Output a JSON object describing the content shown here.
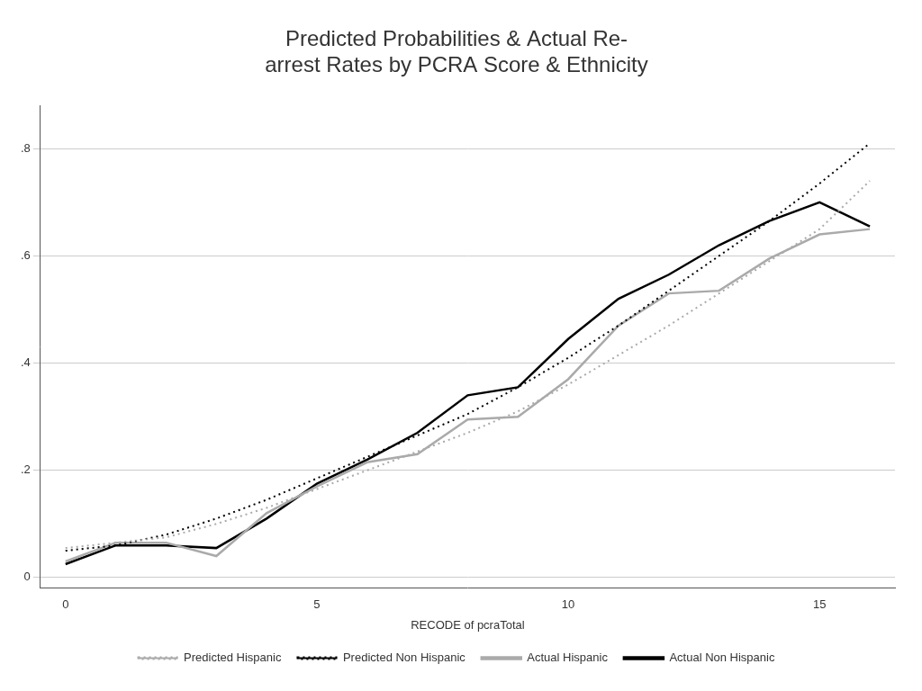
{
  "chart_data": {
    "type": "line",
    "title": "Predicted Probabilities & Actual Re-\narrest Rates by PCRA Score & Ethnicity",
    "x_label": "RECODE of pcraTotal",
    "x": [
      0,
      1,
      2,
      3,
      4,
      5,
      6,
      7,
      8,
      9,
      10,
      11,
      12,
      13,
      14,
      15,
      16
    ],
    "series": [
      {
        "name": "Predicted Hispanic",
        "color": "#aaaaaa",
        "line_style": "dotted",
        "values": [
          0.055,
          0.065,
          0.075,
          0.1,
          0.13,
          0.165,
          0.2,
          0.235,
          0.27,
          0.31,
          0.36,
          0.415,
          0.47,
          0.53,
          0.59,
          0.65,
          0.74
        ]
      },
      {
        "name": "Predicted Non Hispanic",
        "color": "#000000",
        "line_style": "dotted",
        "values": [
          0.05,
          0.06,
          0.08,
          0.11,
          0.145,
          0.185,
          0.225,
          0.265,
          0.305,
          0.355,
          0.41,
          0.47,
          0.535,
          0.6,
          0.665,
          0.735,
          0.81
        ]
      },
      {
        "name": "Actual Hispanic",
        "color": "#aaaaaa",
        "line_style": "solid",
        "values": [
          0.03,
          0.065,
          0.065,
          0.04,
          0.12,
          0.17,
          0.215,
          0.23,
          0.295,
          0.3,
          0.37,
          0.47,
          0.53,
          0.535,
          0.595,
          0.64,
          0.65
        ]
      },
      {
        "name": "Actual Non Hispanic",
        "color": "#000000",
        "line_style": "solid",
        "values": [
          0.025,
          0.06,
          0.06,
          0.055,
          0.11,
          0.175,
          0.22,
          0.27,
          0.34,
          0.355,
          0.445,
          0.52,
          0.565,
          0.62,
          0.665,
          0.7,
          0.655
        ]
      }
    ],
    "xlim": [
      -0.5,
      16.5
    ],
    "xticks": [
      0,
      5,
      10,
      15
    ],
    "ylim": [
      -0.02,
      0.88
    ],
    "yticks": [
      0,
      {
        "value": 0.2,
        "label": ".2"
      },
      {
        "value": 0.4,
        "label": ".4"
      },
      {
        "value": 0.6,
        "label": ".6"
      },
      {
        "value": 0.8,
        "label": ".8"
      }
    ],
    "grid": true,
    "legend": "bottom"
  }
}
